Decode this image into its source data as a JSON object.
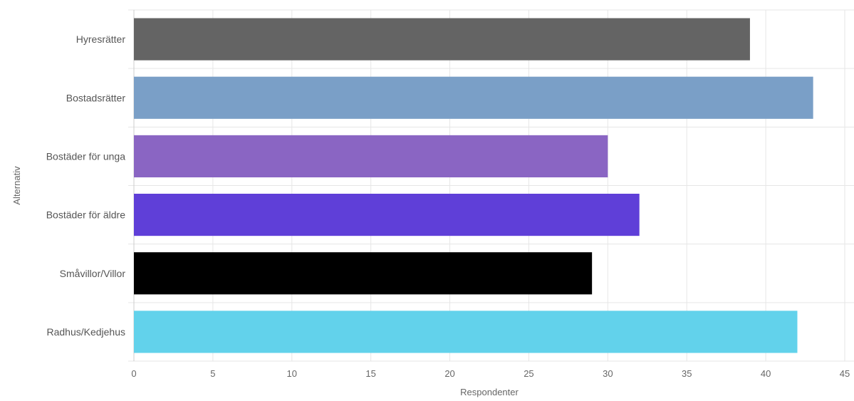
{
  "chart_data": {
    "type": "bar",
    "orientation": "horizontal",
    "title": "",
    "xlabel": "Respondenter",
    "ylabel": "Alternativ",
    "xlim": [
      0,
      45
    ],
    "x_ticks": [
      0,
      5,
      10,
      15,
      20,
      25,
      30,
      35,
      40,
      45
    ],
    "grid": true,
    "categories": [
      "Hyresrätter",
      "Bostadsrätter",
      "Bostäder för unga",
      "Bostäder för äldre",
      "Småvillor/Villor",
      "Radhus/Kedjehus"
    ],
    "values": [
      39,
      43,
      30,
      32,
      29,
      42
    ],
    "colors": [
      "#646464",
      "#7a9fc7",
      "#8a65c3",
      "#5f3fd8",
      "#000000",
      "#62d2eb"
    ]
  }
}
